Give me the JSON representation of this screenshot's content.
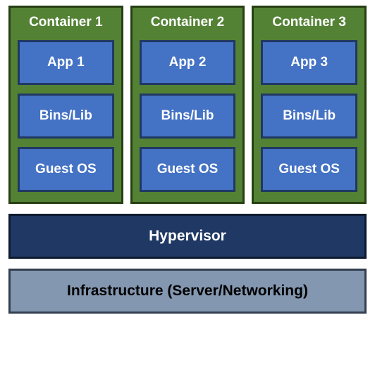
{
  "diagram": {
    "type": "infographic",
    "background_color": "#ffffff",
    "container_bg": "#548235",
    "container_border": "#274013",
    "container_text": "#ffffff",
    "inner_bg": "#4472c4",
    "inner_border": "#203864",
    "inner_text": "#ffffff",
    "hypervisor_bg": "#1f3864",
    "hypervisor_border": "#0d1a30",
    "hypervisor_text": "#ffffff",
    "infra_bg": "#8497b0",
    "infra_border": "#333f50",
    "infra_text": "#000000",
    "title_fontsize": 19,
    "box_fontsize": 19,
    "bar_fontsize": 21,
    "containers": [
      {
        "title": "Container 1",
        "boxes": [
          "App 1",
          "Bins/Lib",
          "Guest OS"
        ]
      },
      {
        "title": "Container 2",
        "boxes": [
          "App 2",
          "Bins/Lib",
          "Guest OS"
        ]
      },
      {
        "title": "Container 3",
        "boxes": [
          "App 3",
          "Bins/Lib",
          "Guest OS"
        ]
      }
    ],
    "hypervisor_label": "Hypervisor",
    "infrastructure_label": "Infrastructure (Server/Networking)"
  }
}
